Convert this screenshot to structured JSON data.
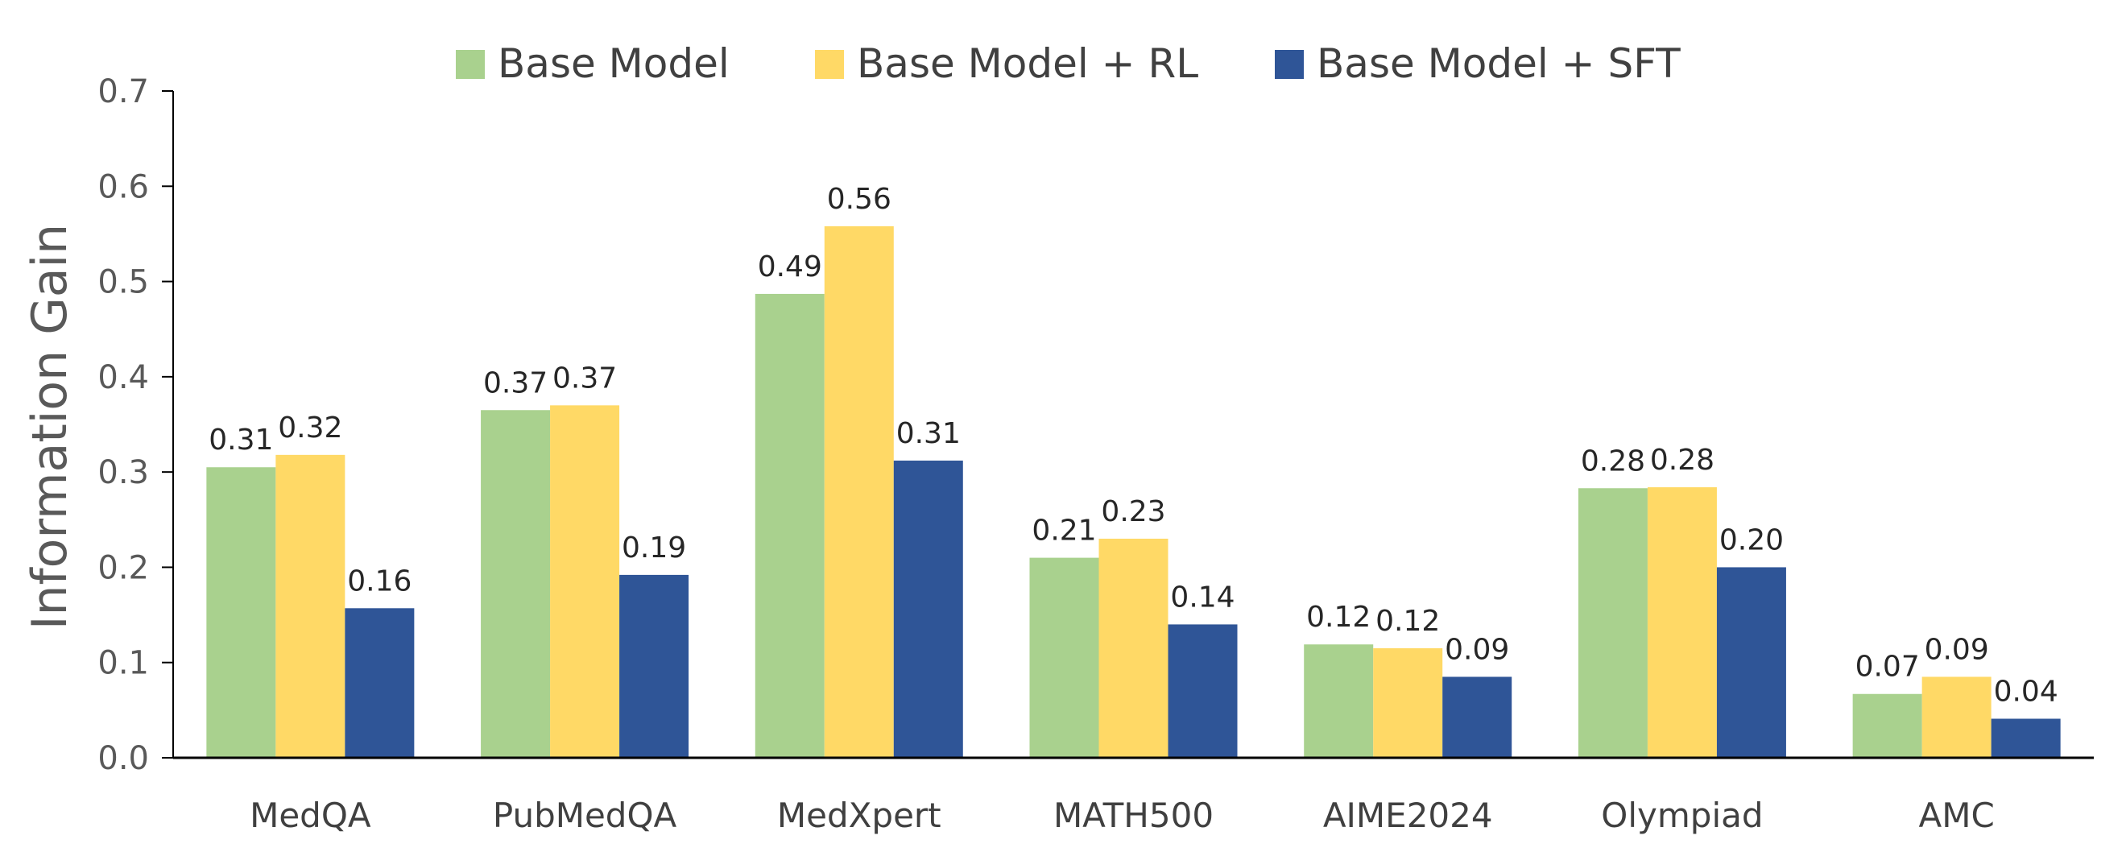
{
  "chart_data": {
    "type": "bar",
    "title": "",
    "xlabel": "",
    "ylabel": "Information Gain",
    "ylim": [
      0,
      0.7
    ],
    "yticks": [
      "0.0",
      "0.1",
      "0.2",
      "0.3",
      "0.4",
      "0.5",
      "0.6",
      "0.7"
    ],
    "grid": false,
    "legend_position": "top-center",
    "categories": [
      "MedQA",
      "PubMedQA",
      "MedXpert",
      "MATH500",
      "AIME2024",
      "Olympiad",
      "AMC"
    ],
    "series": [
      {
        "name": "Base Model",
        "color": "#a9d18e",
        "values": [
          0.305,
          0.365,
          0.487,
          0.21,
          0.119,
          0.283,
          0.067
        ],
        "labels": [
          "0.31",
          "0.37",
          "0.49",
          "0.21",
          "0.12",
          "0.28",
          "0.07"
        ]
      },
      {
        "name": "Base Model + RL",
        "color": "#ffd966",
        "values": [
          0.318,
          0.37,
          0.558,
          0.23,
          0.115,
          0.284,
          0.085
        ],
        "labels": [
          "0.32",
          "0.37",
          "0.56",
          "0.23",
          "0.12",
          "0.28",
          "0.09"
        ]
      },
      {
        "name": "Base Model + SFT",
        "color": "#2f5597",
        "values": [
          0.157,
          0.192,
          0.312,
          0.14,
          0.085,
          0.2,
          0.041
        ],
        "labels": [
          "0.16",
          "0.19",
          "0.31",
          "0.14",
          "0.09",
          "0.20",
          "0.04"
        ]
      }
    ]
  }
}
